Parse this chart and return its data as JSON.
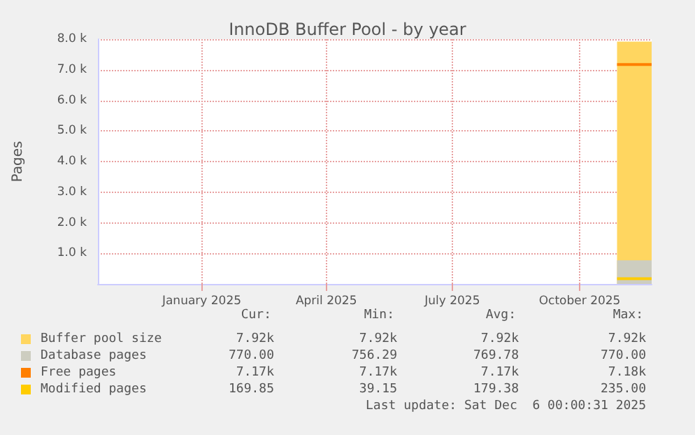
{
  "chart_data": {
    "type": "area",
    "title": "InnoDB Buffer Pool - by year",
    "ylabel": "Pages",
    "x": [
      "2025-11-11",
      "2025-12-06"
    ],
    "xlim": [
      "2024-11-01",
      "2025-12-06"
    ],
    "xticks": [
      {
        "value": "2025-01-15",
        "label": "January 2025"
      },
      {
        "value": "2025-04-15",
        "label": "April 2025"
      },
      {
        "value": "2025-07-15",
        "label": "July 2025"
      },
      {
        "value": "2025-10-15",
        "label": "October 2025"
      }
    ],
    "ylim": [
      0,
      8000
    ],
    "yticks": [
      {
        "value": 1000,
        "label": "1.0 k"
      },
      {
        "value": 2000,
        "label": "2.0 k"
      },
      {
        "value": 3000,
        "label": "3.0 k"
      },
      {
        "value": 4000,
        "label": "4.0 k"
      },
      {
        "value": 5000,
        "label": "5.0 k"
      },
      {
        "value": 6000,
        "label": "6.0 k"
      },
      {
        "value": 7000,
        "label": "7.0 k"
      },
      {
        "value": 8000,
        "label": "8.0 k"
      }
    ],
    "series": [
      {
        "name": "Buffer pool size",
        "color": "#ffd660",
        "values": [
          7920,
          7920
        ]
      },
      {
        "name": "Database pages",
        "color": "#cdcdc0",
        "values": [
          770,
          770
        ]
      },
      {
        "name": "Free pages",
        "type": "line",
        "color": "#ff7f00",
        "values": [
          7170,
          7170
        ]
      },
      {
        "name": "Modified pages",
        "type": "line",
        "color": "#ffcc00",
        "values": [
          170,
          170
        ]
      }
    ],
    "annotations": [
      "Cur:",
      "Min:",
      "Avg:",
      "Max:",
      "7.92k",
      "7.92k",
      "7.92k",
      "7.92k",
      "770.00",
      "756.29",
      "769.78",
      "770.00",
      "7.17k",
      "7.17k",
      "7.17k",
      "7.18k",
      "169.85",
      "39.15",
      "179.38",
      "235.00",
      "Last update: Sat Dec  6 00:00:31 2025"
    ],
    "grid": true,
    "legend": "bottom"
  }
}
